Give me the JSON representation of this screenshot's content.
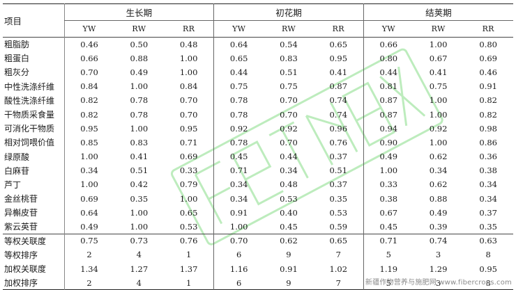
{
  "header": {
    "item_label": "项目",
    "groups": [
      "生长期",
      "初花期",
      "结荚期"
    ],
    "sub_labels": [
      "YW",
      "RW",
      "RR"
    ]
  },
  "rows": [
    {
      "label": "粗脂肪",
      "values": [
        "0.46",
        "0.50",
        "0.48",
        "0.64",
        "0.54",
        "0.65",
        "0.66",
        "1.00",
        "0.80"
      ]
    },
    {
      "label": "粗蛋白",
      "values": [
        "0.66",
        "0.88",
        "1.00",
        "0.65",
        "0.83",
        "0.95",
        "0.80",
        "0.67",
        "0.69"
      ]
    },
    {
      "label": "粗灰分",
      "values": [
        "0.70",
        "0.49",
        "1.00",
        "0.44",
        "0.51",
        "0.41",
        "0.44",
        "0.41",
        "0.46"
      ]
    },
    {
      "label": "中性洗涤纤维",
      "values": [
        "0.84",
        "1.00",
        "0.84",
        "0.75",
        "0.75",
        "0.87",
        "0.81",
        "0.75",
        "0.91"
      ]
    },
    {
      "label": "酸性洗涤纤维",
      "values": [
        "0.82",
        "0.78",
        "0.70",
        "0.78",
        "0.70",
        "0.74",
        "0.87",
        "1.00",
        "0.82"
      ]
    },
    {
      "label": "干物质采食量",
      "values": [
        "0.82",
        "0.78",
        "0.70",
        "0.78",
        "0.70",
        "0.74",
        "0.87",
        "1.00",
        "0.82"
      ]
    },
    {
      "label": "可消化干物质",
      "values": [
        "0.95",
        "1.00",
        "0.95",
        "0.92",
        "0.92",
        "0.96",
        "0.94",
        "0.92",
        "0.98"
      ]
    },
    {
      "label": "相对饲喂价值",
      "values": [
        "0.85",
        "0.83",
        "0.71",
        "0.78",
        "0.70",
        "0.76",
        "0.90",
        "1.00",
        "0.86"
      ]
    },
    {
      "label": "绿原酸",
      "values": [
        "1.00",
        "0.41",
        "0.69",
        "0.45",
        "0.44",
        "0.37",
        "0.49",
        "0.62",
        "0.36"
      ]
    },
    {
      "label": "白麻苷",
      "values": [
        "0.34",
        "0.51",
        "0.33",
        "0.71",
        "0.34",
        "0.51",
        "1.00",
        "0.34",
        "0.38"
      ]
    },
    {
      "label": "芦丁",
      "values": [
        "1.00",
        "0.42",
        "0.79",
        "0.34",
        "0.48",
        "0.37",
        "0.33",
        "0.62",
        "0.34"
      ]
    },
    {
      "label": "金丝桃苷",
      "values": [
        "0.69",
        "0.35",
        "1.00",
        "0.34",
        "0.53",
        "0.35",
        "0.38",
        "0.88",
        "0.34"
      ]
    },
    {
      "label": "异槲皮苷",
      "values": [
        "0.64",
        "1.00",
        "0.65",
        "0.91",
        "0.40",
        "0.53",
        "0.67",
        "0.49",
        "0.37"
      ]
    },
    {
      "label": "紫云英苷",
      "values": [
        "0.49",
        "1.00",
        "0.53",
        "1.00",
        "0.45",
        "0.59",
        "0.45",
        "0.39",
        "0.35"
      ]
    }
  ],
  "summary_rows": [
    {
      "label": "等权关联度",
      "values": [
        "0.75",
        "0.73",
        "0.76",
        "0.70",
        "0.62",
        "0.65",
        "0.71",
        "0.74",
        "0.63"
      ]
    },
    {
      "label": "等权排序",
      "values": [
        "2",
        "4",
        "1",
        "6",
        "9",
        "7",
        "5",
        "3",
        "8"
      ]
    },
    {
      "label": "加权关联度",
      "values": [
        "1.34",
        "1.27",
        "1.37",
        "1.16",
        "0.91",
        "1.02",
        "1.19",
        "1.29",
        "0.95"
      ]
    },
    {
      "label": "加权排序",
      "values": [
        "2",
        "4",
        "1",
        "6",
        "9",
        "7",
        "5",
        "3",
        "8"
      ]
    }
  ],
  "watermark": {
    "text": "新疆作物营养与施肥网 www.fibercrops.com",
    "color": "#9be39b"
  }
}
